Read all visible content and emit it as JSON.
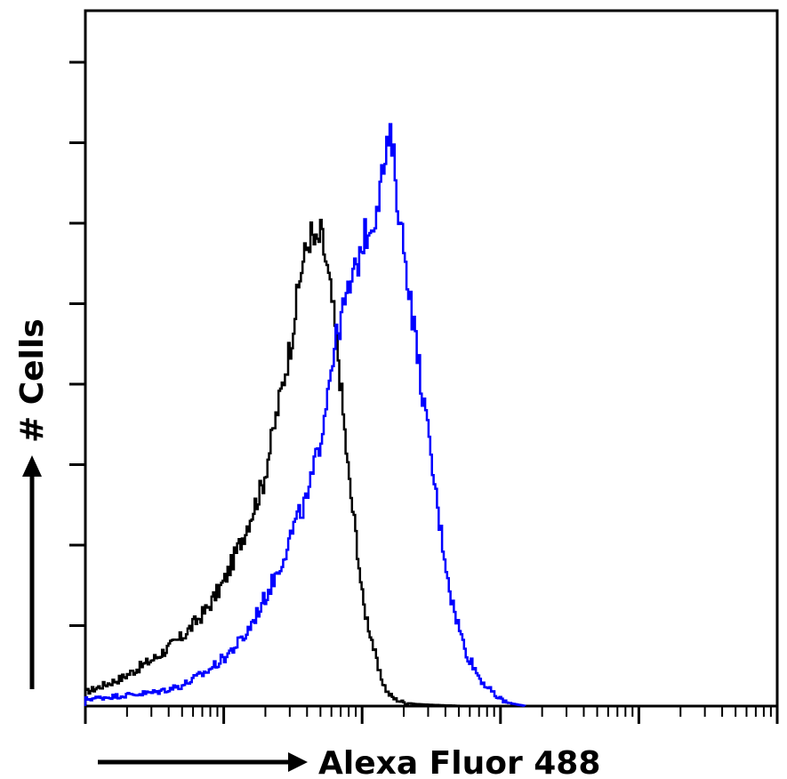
{
  "chart_data": {
    "type": "line",
    "title": "",
    "xlabel": "Alexa Fluor 488",
    "ylabel": "# Cells",
    "x_scale": "log",
    "xlim": [
      0.1,
      10000
    ],
    "ylim": [
      0,
      1
    ],
    "grid": false,
    "legend": "none",
    "series": [
      {
        "color": "#000000",
        "x": [
          0.1,
          0.18,
          0.32,
          0.5,
          0.75,
          1.0,
          1.4,
          1.9,
          2.5,
          3.0,
          3.6,
          4.2,
          4.6,
          5.0,
          5.4,
          6.0,
          6.6,
          7.2,
          8.0,
          9.0,
          10.0,
          11.5,
          13.0,
          15.0,
          17.0,
          20.0,
          24.0,
          30.0,
          40.0,
          60.0,
          100.0
        ],
        "y": [
          0.02,
          0.04,
          0.07,
          0.1,
          0.14,
          0.18,
          0.25,
          0.32,
          0.44,
          0.52,
          0.63,
          0.68,
          0.66,
          0.68,
          0.64,
          0.58,
          0.51,
          0.42,
          0.32,
          0.24,
          0.15,
          0.1,
          0.05,
          0.02,
          0.01,
          0.005,
          0.003,
          0.002,
          0.001,
          0.0,
          0.0
        ]
      },
      {
        "color": "#0000ff",
        "x": [
          0.1,
          0.18,
          0.32,
          0.5,
          0.75,
          1.0,
          1.4,
          1.9,
          2.5,
          3.2,
          4.0,
          5.0,
          6.0,
          7.0,
          8.0,
          9.0,
          10.0,
          12.0,
          14.0,
          16.0,
          18.0,
          21.0,
          25.0,
          30.0,
          36.0,
          44.0,
          55.0,
          70.0,
          90.0,
          110.0,
          150.0
        ],
        "y": [
          0.01,
          0.015,
          0.02,
          0.03,
          0.05,
          0.07,
          0.1,
          0.15,
          0.2,
          0.26,
          0.3,
          0.39,
          0.5,
          0.56,
          0.6,
          0.63,
          0.67,
          0.7,
          0.77,
          0.82,
          0.72,
          0.62,
          0.5,
          0.38,
          0.26,
          0.15,
          0.08,
          0.04,
          0.015,
          0.005,
          0.0
        ]
      }
    ]
  }
}
